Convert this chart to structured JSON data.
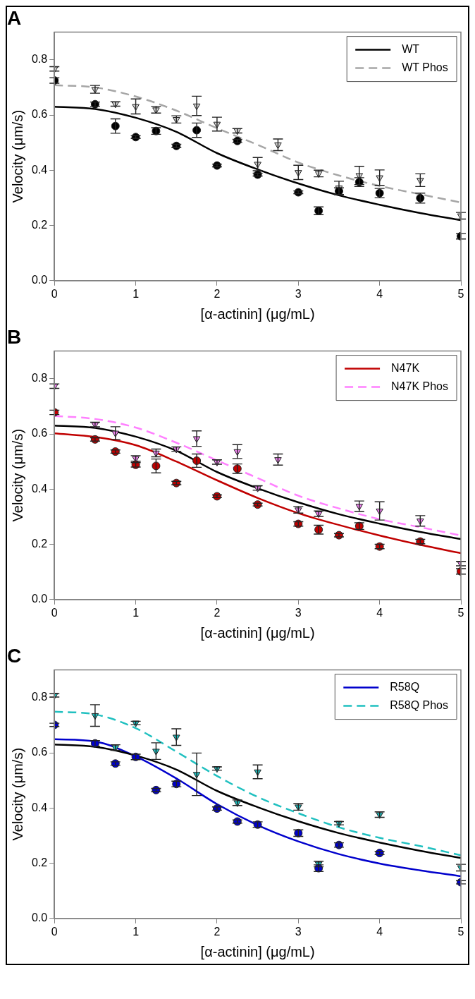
{
  "chart_data": [
    {
      "type": "scatter",
      "title": "A",
      "xlabel": "[α-actinin] (μg/mL)",
      "ylabel": "Velocity (μm/s)",
      "xlim": [
        0,
        5
      ],
      "xticks": [
        0,
        1,
        2,
        3,
        4,
        5
      ],
      "ylim": [
        0,
        0.9
      ],
      "yticks": [
        {
          "value": 0,
          "label": "0.0"
        },
        {
          "value": 0.2,
          "label": "0.2"
        },
        {
          "value": 0.4,
          "label": "0.4"
        },
        {
          "value": 0.6,
          "label": "0.6"
        },
        {
          "value": 0.8,
          "label": "0.8"
        }
      ],
      "grid": false,
      "legend": "top right",
      "series": [
        {
          "type": "line",
          "name": "WT",
          "color": "#000000",
          "line_style": "solid",
          "marker": "none",
          "x": [
            0,
            0.5,
            1,
            1.5,
            2,
            2.5,
            3,
            3.5,
            4,
            4.5,
            5
          ],
          "values": [
            0.63,
            0.622,
            0.59,
            0.539,
            0.462,
            0.403,
            0.352,
            0.309,
            0.275,
            0.245,
            0.219
          ]
        },
        {
          "type": "line",
          "name": "WT Phos",
          "color": "#a6a6a6",
          "line_style": "dashed",
          "marker": "none",
          "x": [
            0,
            0.5,
            1,
            1.5,
            2,
            2.5,
            3,
            3.5,
            4,
            4.5,
            5
          ],
          "values": [
            0.708,
            0.7,
            0.667,
            0.616,
            0.552,
            0.492,
            0.428,
            0.381,
            0.343,
            0.313,
            0.283
          ]
        },
        {
          "type": "scatter",
          "color": "#000000",
          "marker": "circle",
          "x": [
            0,
            0.5,
            0.75,
            1,
            1.25,
            1.5,
            1.75,
            2,
            2.25,
            2.5,
            3,
            3.25,
            3.5,
            3.75,
            4,
            4.5,
            5
          ],
          "values": [
            0.725,
            0.639,
            0.56,
            0.52,
            0.542,
            0.488,
            0.545,
            0.417,
            0.506,
            0.384,
            0.32,
            0.253,
            0.324,
            0.357,
            0.317,
            0.299,
            0.161
          ],
          "errors": [
            0.01,
            0.008,
            0.026,
            0.005,
            0.012,
            0.006,
            0.026,
            0.005,
            0.006,
            0.005,
            0.005,
            0.014,
            0.012,
            0.016,
            0.017,
            0.018,
            0.01
          ]
        },
        {
          "type": "scatter",
          "color": "#d0d0d0",
          "marker": "triangle",
          "x": [
            0,
            0.5,
            0.75,
            1,
            1.25,
            1.5,
            1.75,
            2,
            2.25,
            2.5,
            2.75,
            3,
            3.25,
            3.5,
            3.75,
            4,
            4.5,
            5
          ],
          "values": [
            0.767,
            0.693,
            0.64,
            0.631,
            0.619,
            0.584,
            0.633,
            0.567,
            0.543,
            0.422,
            0.492,
            0.392,
            0.388,
            0.336,
            0.381,
            0.373,
            0.364,
            0.235
          ],
          "errors": [
            0.008,
            0.014,
            0.008,
            0.027,
            0.012,
            0.013,
            0.035,
            0.025,
            0.008,
            0.024,
            0.021,
            0.026,
            0.012,
            0.024,
            0.033,
            0.028,
            0.023,
            0.012
          ]
        }
      ]
    },
    {
      "type": "scatter",
      "title": "B",
      "xlabel": "[α-actinin] (μg/mL)",
      "ylabel": "Velocity (μm/s)",
      "xlim": [
        0,
        5
      ],
      "xticks": [
        0,
        1,
        2,
        3,
        4,
        5
      ],
      "ylim": [
        0,
        0.9
      ],
      "yticks": [
        {
          "value": 0,
          "label": "0.0"
        },
        {
          "value": 0.2,
          "label": "0.2"
        },
        {
          "value": 0.4,
          "label": "0.4"
        },
        {
          "value": 0.6,
          "label": "0.6"
        },
        {
          "value": 0.8,
          "label": "0.8"
        }
      ],
      "grid": false,
      "legend": "top right",
      "series": [
        {
          "type": "line",
          "color": "#000000",
          "line_style": "solid",
          "marker": "none",
          "x": [
            0,
            0.5,
            1,
            1.5,
            2,
            2.5,
            3,
            3.5,
            4,
            4.5,
            5
          ],
          "values": [
            0.63,
            0.622,
            0.59,
            0.539,
            0.462,
            0.403,
            0.352,
            0.309,
            0.275,
            0.245,
            0.219
          ]
        },
        {
          "type": "line",
          "name": "N47K",
          "color": "#c00000",
          "line_style": "solid",
          "marker": "none",
          "x": [
            0,
            0.5,
            1,
            1.5,
            2,
            2.5,
            3,
            3.5,
            4,
            4.5,
            5
          ],
          "values": [
            0.602,
            0.589,
            0.559,
            0.5,
            0.432,
            0.368,
            0.313,
            0.27,
            0.232,
            0.198,
            0.168
          ]
        },
        {
          "type": "line",
          "name": "N47K Phos",
          "color": "#ff80ff",
          "line_style": "dashed",
          "marker": "none",
          "x": [
            0,
            0.5,
            1,
            1.5,
            2,
            2.5,
            3,
            3.5,
            4,
            4.5,
            5
          ],
          "values": [
            0.665,
            0.654,
            0.623,
            0.568,
            0.504,
            0.44,
            0.376,
            0.33,
            0.291,
            0.262,
            0.232
          ]
        },
        {
          "type": "scatter",
          "color": "#c00000",
          "marker": "circle",
          "x": [
            0,
            0.5,
            0.75,
            1,
            1.25,
            1.5,
            1.75,
            2,
            2.25,
            2.5,
            3,
            3.25,
            3.5,
            3.75,
            4,
            4.5,
            5
          ],
          "values": [
            0.678,
            0.58,
            0.536,
            0.488,
            0.484,
            0.422,
            0.503,
            0.374,
            0.474,
            0.344,
            0.274,
            0.253,
            0.233,
            0.266,
            0.192,
            0.21,
            0.102
          ],
          "errors": [
            0.008,
            0.006,
            0.006,
            0.008,
            0.025,
            0.006,
            0.024,
            0.005,
            0.017,
            0.005,
            0.008,
            0.016,
            0.006,
            0.012,
            0.008,
            0.008,
            0.01
          ]
        },
        {
          "type": "scatter",
          "color": "#ee82ee",
          "marker": "triangle",
          "x": [
            0,
            0.5,
            0.75,
            1,
            1.25,
            1.5,
            1.75,
            2,
            2.25,
            2.5,
            2.75,
            3,
            3.25,
            3.75,
            4,
            4.5,
            5
          ],
          "values": [
            0.773,
            0.634,
            0.603,
            0.511,
            0.531,
            0.545,
            0.583,
            0.498,
            0.536,
            0.404,
            0.507,
            0.325,
            0.311,
            0.338,
            0.321,
            0.285,
            0.13
          ],
          "errors": [
            0.008,
            0.008,
            0.023,
            0.01,
            0.014,
            0.008,
            0.028,
            0.008,
            0.025,
            0.008,
            0.02,
            0.012,
            0.01,
            0.019,
            0.033,
            0.019,
            0.008
          ]
        }
      ]
    },
    {
      "type": "scatter",
      "title": "C",
      "xlabel": "[α-actinin] (μg/mL)",
      "ylabel": "Velocity (μm/s)",
      "xlim": [
        0,
        5
      ],
      "xticks": [
        0,
        1,
        2,
        3,
        4,
        5
      ],
      "ylim": [
        0,
        0.9
      ],
      "yticks": [
        {
          "value": 0,
          "label": "0.0"
        },
        {
          "value": 0.2,
          "label": "0.2"
        },
        {
          "value": 0.4,
          "label": "0.4"
        },
        {
          "value": 0.6,
          "label": "0.6"
        },
        {
          "value": 0.8,
          "label": "0.8"
        }
      ],
      "grid": false,
      "legend": "top right",
      "series": [
        {
          "type": "line",
          "color": "#000000",
          "line_style": "solid",
          "marker": "none",
          "x": [
            0,
            0.5,
            1,
            1.5,
            2,
            2.5,
            3,
            3.5,
            4,
            4.5,
            5
          ],
          "values": [
            0.63,
            0.622,
            0.59,
            0.539,
            0.462,
            0.403,
            0.352,
            0.309,
            0.275,
            0.245,
            0.219
          ]
        },
        {
          "type": "line",
          "name": "R58Q",
          "color": "#0000cc",
          "line_style": "solid",
          "marker": "none",
          "x": [
            0,
            0.5,
            1,
            1.5,
            2,
            2.5,
            3,
            3.5,
            4,
            4.5,
            5
          ],
          "values": [
            0.649,
            0.641,
            0.587,
            0.507,
            0.414,
            0.338,
            0.279,
            0.233,
            0.199,
            0.174,
            0.153
          ]
        },
        {
          "type": "line",
          "name": "R58Q Phos",
          "color": "#20c0c0",
          "line_style": "dashed",
          "marker": "none",
          "x": [
            0,
            0.5,
            1,
            1.5,
            2,
            2.5,
            3,
            3.5,
            4,
            4.5,
            5
          ],
          "values": [
            0.749,
            0.739,
            0.689,
            0.604,
            0.516,
            0.44,
            0.381,
            0.33,
            0.292,
            0.262,
            0.229
          ]
        },
        {
          "type": "scatter",
          "color": "#0000cc",
          "marker": "circle",
          "x": [
            0,
            0.5,
            0.75,
            1,
            1.25,
            1.5,
            2,
            2.25,
            2.5,
            3,
            3.25,
            3.5,
            4,
            5
          ],
          "values": [
            0.701,
            0.634,
            0.561,
            0.585,
            0.465,
            0.487,
            0.398,
            0.351,
            0.34,
            0.309,
            0.182,
            0.266,
            0.237,
            0.131
          ],
          "errors": [
            0.006,
            0.01,
            0.006,
            0.01,
            0.006,
            0.01,
            0.006,
            0.006,
            0.01,
            0.012,
            0.012,
            0.008,
            0.006,
            0.006
          ]
        },
        {
          "type": "scatter",
          "color": "#20c0c0",
          "marker": "triangle",
          "x": [
            0,
            0.5,
            0.75,
            1,
            1.25,
            1.5,
            1.75,
            2,
            2.25,
            2.5,
            3,
            3.25,
            3.5,
            4,
            5
          ],
          "values": [
            0.808,
            0.735,
            0.619,
            0.708,
            0.606,
            0.657,
            0.522,
            0.543,
            0.419,
            0.531,
            0.404,
            0.197,
            0.345,
            0.376,
            0.184
          ],
          "errors": [
            0.006,
            0.039,
            0.01,
            0.006,
            0.03,
            0.03,
            0.077,
            0.006,
            0.01,
            0.025,
            0.012,
            0.01,
            0.006,
            0.01,
            0.012
          ]
        }
      ]
    }
  ]
}
